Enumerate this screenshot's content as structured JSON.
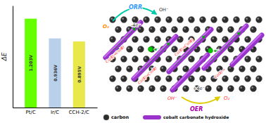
{
  "chart_data": {
    "type": "bar",
    "categories": [
      "Pt/C",
      "Ir/C",
      "CCH-2/C"
    ],
    "values": [
      1.203,
      0.936,
      0.895
    ],
    "value_labels": [
      "1.203V",
      "0.936V",
      "0.895V"
    ],
    "colors": [
      "#66ff00",
      "#b8d0ea",
      "#e8e84a"
    ],
    "ylabel": "ΔE",
    "ylim": [
      0,
      1.38
    ],
    "yticks": [],
    "tick_labels": "x",
    "data_labels": true,
    "annotations": [
      "ORR",
      "OH⁻",
      "O₂",
      "-4e⁻",
      "Co(Ⅱ)⇒Co(Ⅲ)",
      "Co(Ⅱ)⇒Co(Ⅲ)",
      "Co(Ⅱ)⇒Co(Ⅲ)",
      "Co(Ⅱ)⇒",
      "+4e⁻",
      "OH⁻",
      "O₂",
      "OER",
      "e⁻",
      "e⁻",
      "carbon",
      "cobalt carbonate hydroxide"
    ]
  }
}
